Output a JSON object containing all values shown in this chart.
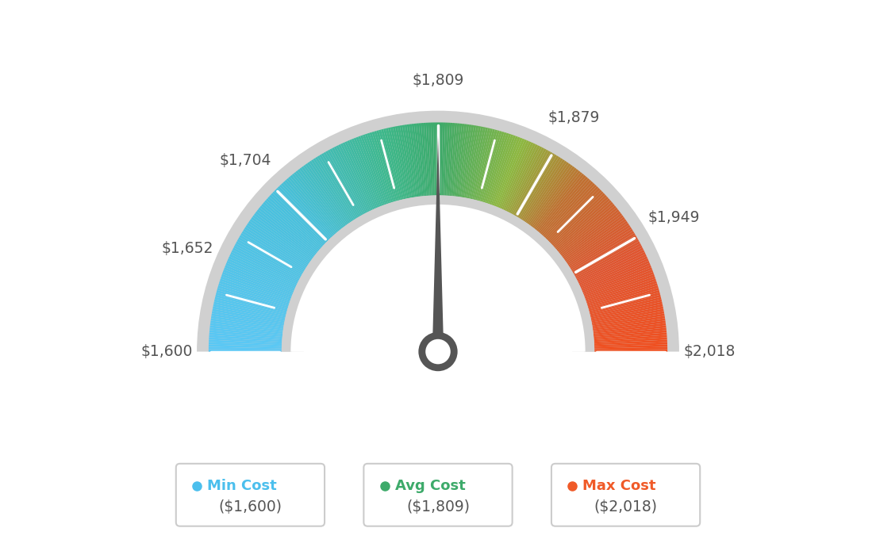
{
  "min_val": 1600,
  "max_val": 2018,
  "avg_val": 1809,
  "tick_labels": [
    "$1,600",
    "$1,652",
    "$1,704",
    "$1,809",
    "$1,879",
    "$1,949",
    "$2,018"
  ],
  "tick_values": [
    1600,
    1652,
    1704,
    1809,
    1879,
    1949,
    2018
  ],
  "legend_min_label": "Min Cost",
  "legend_avg_label": "Avg Cost",
  "legend_max_label": "Max Cost",
  "legend_min_val": "($1,600)",
  "legend_avg_val": "($1,809)",
  "legend_max_val": "($2,018)",
  "color_min": "#4BBFED",
  "color_avg": "#3DAA6A",
  "color_max": "#F05A28",
  "bg_color": "#FFFFFF",
  "needle_color": "#555555",
  "border_color": "#C8C8C8",
  "label_color": "#555555",
  "gradient_colors": [
    [
      0.0,
      "#5BC8F5"
    ],
    [
      0.25,
      "#47C0DC"
    ],
    [
      0.42,
      "#3DB88A"
    ],
    [
      0.5,
      "#3DAA6A"
    ],
    [
      0.62,
      "#8DB840"
    ],
    [
      0.72,
      "#C07030"
    ],
    [
      0.85,
      "#E05530"
    ],
    [
      1.0,
      "#F05020"
    ]
  ]
}
